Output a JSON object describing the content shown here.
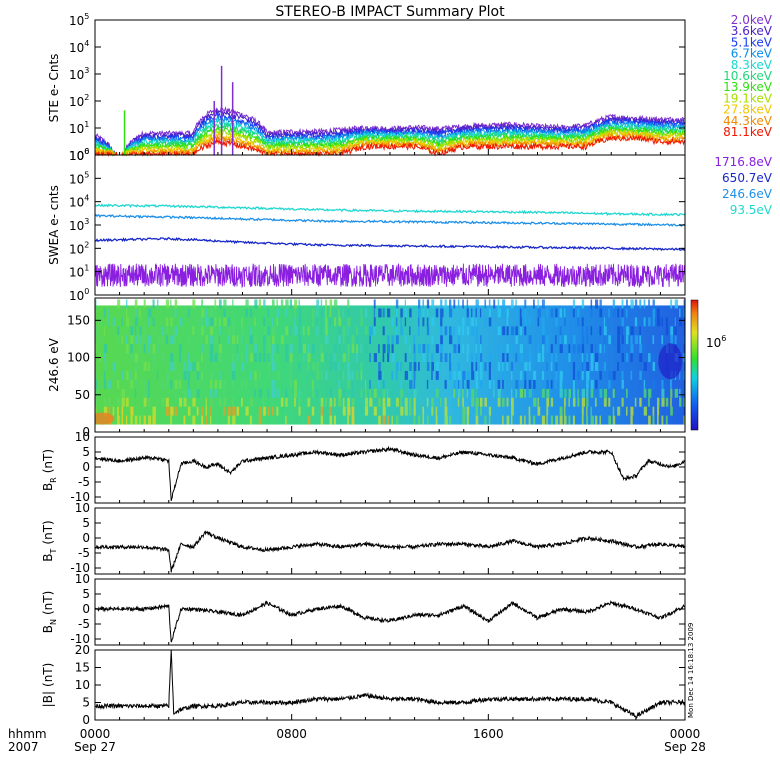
{
  "title": "STEREO-B IMPACT Summary Plot",
  "stamp": "Mon Dec 14 16:18:13 2009",
  "time_axis": {
    "hhmm_label": "hhmm",
    "year_label": "2007",
    "ticks": [
      {
        "time": "0000",
        "date": "Sep 27",
        "hour": 0
      },
      {
        "time": "0800",
        "date": "",
        "hour": 8
      },
      {
        "time": "1600",
        "date": "",
        "hour": 16
      },
      {
        "time": "0000",
        "date": "Sep 28",
        "hour": 24
      }
    ],
    "range_hours": [
      0,
      24
    ]
  },
  "ste_legend": [
    {
      "label": "2.0keV",
      "color": "#7f2fd0"
    },
    {
      "label": "3.6keV",
      "color": "#4a1fc8"
    },
    {
      "label": "5.1keV",
      "color": "#1a3cf0"
    },
    {
      "label": "6.7keV",
      "color": "#0a8ce8"
    },
    {
      "label": "8.3keV",
      "color": "#18d8d0"
    },
    {
      "label": "10.6keV",
      "color": "#20d878"
    },
    {
      "label": "13.9keV",
      "color": "#30e010"
    },
    {
      "label": "19.1keV",
      "color": "#a8e000"
    },
    {
      "label": "27.8keV",
      "color": "#f0c800"
    },
    {
      "label": "44.3keV",
      "color": "#f08a00"
    },
    {
      "label": "81.1keV",
      "color": "#f01800"
    }
  ],
  "swea_legend": [
    {
      "label": "1716.8eV",
      "color": "#8a1fe0"
    },
    {
      "label": "650.7eV",
      "color": "#1828c8"
    },
    {
      "label": "246.6eV",
      "color": "#1e90e8"
    },
    {
      "label": "93.5eV",
      "color": "#20d8d0"
    }
  ],
  "colorbar": {
    "label": "10",
    "exponent": "6"
  },
  "chart_data": [
    {
      "type": "line",
      "ylabel": "STE e- Cnts",
      "yscale": "log",
      "ylim": [
        1,
        100000
      ],
      "ytick_exponents": [
        "0",
        "1",
        "2",
        "3",
        "4",
        "5"
      ],
      "series": [
        {
          "name": "2.0keV",
          "x_hours": [
            0,
            1,
            2,
            3,
            4,
            5,
            6,
            7,
            8,
            9,
            10,
            11,
            12,
            13,
            14,
            15,
            16,
            17,
            18,
            19,
            20,
            21,
            22,
            23,
            24
          ],
          "values": [
            5,
            0,
            6,
            6,
            6,
            50,
            30,
            6,
            7,
            7,
            8,
            10,
            9,
            10,
            9,
            11,
            12,
            13,
            11,
            10,
            12,
            25,
            22,
            20,
            20
          ]
        },
        {
          "name": "81.1keV",
          "x_hours": [
            0,
            1,
            2,
            3,
            4,
            5,
            6,
            7,
            8,
            9,
            10,
            11,
            12,
            13,
            14,
            15,
            16,
            17,
            18,
            19,
            20,
            21,
            22,
            23,
            24
          ],
          "values": [
            1,
            0,
            1,
            1,
            1,
            3,
            2,
            1,
            1,
            1,
            1,
            2,
            2,
            2,
            1,
            2,
            2,
            2,
            2,
            2,
            2,
            4,
            4,
            3,
            3
          ]
        }
      ]
    },
    {
      "type": "line",
      "ylabel": "SWEA e- cnts",
      "yscale": "log",
      "ylim": [
        1,
        1000000
      ],
      "ytick_exponents": [
        "0",
        "1",
        "2",
        "3",
        "4",
        "5",
        "6"
      ],
      "series": [
        {
          "name": "1716.8eV",
          "x_hours": [
            0,
            6,
            12,
            18,
            24
          ],
          "values": [
            7,
            7,
            7,
            7,
            7
          ]
        },
        {
          "name": "650.7eV",
          "x_hours": [
            0,
            3,
            6,
            9,
            12,
            15,
            18,
            21,
            24
          ],
          "values": [
            220,
            260,
            180,
            140,
            130,
            120,
            110,
            100,
            90
          ]
        },
        {
          "name": "246.6eV",
          "x_hours": [
            0,
            3,
            6,
            9,
            12,
            15,
            18,
            21,
            24
          ],
          "values": [
            2500,
            2200,
            1800,
            1500,
            1400,
            1300,
            1200,
            1100,
            1000
          ]
        },
        {
          "name": "93.5eV",
          "x_hours": [
            0,
            3,
            6,
            9,
            12,
            15,
            18,
            21,
            24
          ],
          "values": [
            7000,
            6500,
            5500,
            4500,
            4000,
            3800,
            3500,
            3000,
            2800
          ]
        }
      ]
    },
    {
      "type": "heatmap",
      "ylabel": "246.6 eV",
      "ylim": [
        0,
        180
      ],
      "yticks": [
        0,
        50,
        100,
        150
      ],
      "colorbar_ticks": [
        "10^6"
      ]
    },
    {
      "type": "line",
      "ylabel": "B",
      "ylabel_sub": "R",
      "ylabel_unit": "(nT)",
      "ylim": [
        -12,
        10
      ],
      "yticks": [
        -10,
        -5,
        0,
        5,
        10
      ],
      "series": [
        {
          "name": "",
          "x_hours": [
            0,
            0.5,
            1,
            1.5,
            2,
            2.5,
            3,
            3.1,
            3.5,
            4,
            4.5,
            5,
            5.5,
            6,
            7,
            8,
            9,
            10,
            11,
            12,
            13,
            14,
            15,
            16,
            17,
            18,
            19,
            20,
            21,
            21.5,
            22,
            22.5,
            23,
            23.5,
            24
          ],
          "values": [
            3,
            2.5,
            2,
            2.5,
            3,
            3,
            2,
            -11,
            1,
            2,
            0,
            1,
            -2,
            2,
            3,
            4,
            5,
            4,
            5,
            6,
            4,
            3,
            5,
            4,
            3,
            1,
            3,
            5,
            5,
            -4,
            -3,
            2,
            1,
            0,
            2
          ]
        }
      ]
    },
    {
      "type": "line",
      "ylabel": "B",
      "ylabel_sub": "T",
      "ylabel_unit": "(nT)",
      "ylim": [
        -12,
        10
      ],
      "yticks": [
        -10,
        -5,
        0,
        5,
        10
      ],
      "series": [
        {
          "name": "",
          "x_hours": [
            0,
            1,
            2,
            3,
            3.1,
            3.5,
            4,
            4.5,
            5,
            6,
            7,
            8,
            9,
            10,
            11,
            12,
            13,
            14,
            15,
            16,
            17,
            18,
            19,
            20,
            21,
            22,
            23,
            24
          ],
          "values": [
            -3,
            -3,
            -3,
            -4,
            -11,
            -2,
            -3,
            2,
            0,
            -3,
            -4,
            -3,
            -2,
            -3,
            -2,
            -3,
            -3,
            -2,
            -2,
            -3,
            -1,
            -3,
            -2,
            0,
            -1,
            -3,
            -2,
            -3
          ]
        }
      ]
    },
    {
      "type": "line",
      "ylabel": "B",
      "ylabel_sub": "N",
      "ylabel_unit": "(nT)",
      "ylim": [
        -12,
        10
      ],
      "yticks": [
        -10,
        -5,
        0,
        5,
        10
      ],
      "series": [
        {
          "name": "",
          "x_hours": [
            0,
            1,
            2,
            3,
            3.1,
            3.5,
            4,
            5,
            6,
            7,
            8,
            9,
            10,
            11,
            12,
            13,
            14,
            15,
            16,
            17,
            18,
            19,
            20,
            21,
            22,
            23,
            24
          ],
          "values": [
            0,
            0,
            0,
            1,
            -11,
            0,
            0,
            -1,
            -2,
            2,
            -2,
            0,
            1,
            -3,
            -4,
            -2,
            -2,
            1,
            -4,
            2,
            -3,
            0,
            -1,
            2,
            0,
            -3,
            1
          ]
        }
      ]
    },
    {
      "type": "line",
      "ylabel": "|B|",
      "ylabel_unit": "(nT)",
      "ylim": [
        0,
        20
      ],
      "yticks": [
        0,
        5,
        10,
        15,
        20
      ],
      "series": [
        {
          "name": "",
          "x_hours": [
            0,
            1,
            2,
            3,
            3.1,
            3.2,
            3.5,
            4,
            5,
            6,
            7,
            8,
            9,
            10,
            11,
            12,
            13,
            14,
            15,
            16,
            17,
            18,
            19,
            20,
            21,
            22,
            23,
            24
          ],
          "values": [
            4,
            4,
            4,
            4,
            20,
            2,
            3,
            4,
            4,
            5,
            5,
            5,
            6,
            6,
            7,
            6,
            6,
            5,
            5,
            6,
            6,
            6,
            6,
            6,
            5,
            1,
            5,
            5
          ]
        }
      ]
    }
  ]
}
